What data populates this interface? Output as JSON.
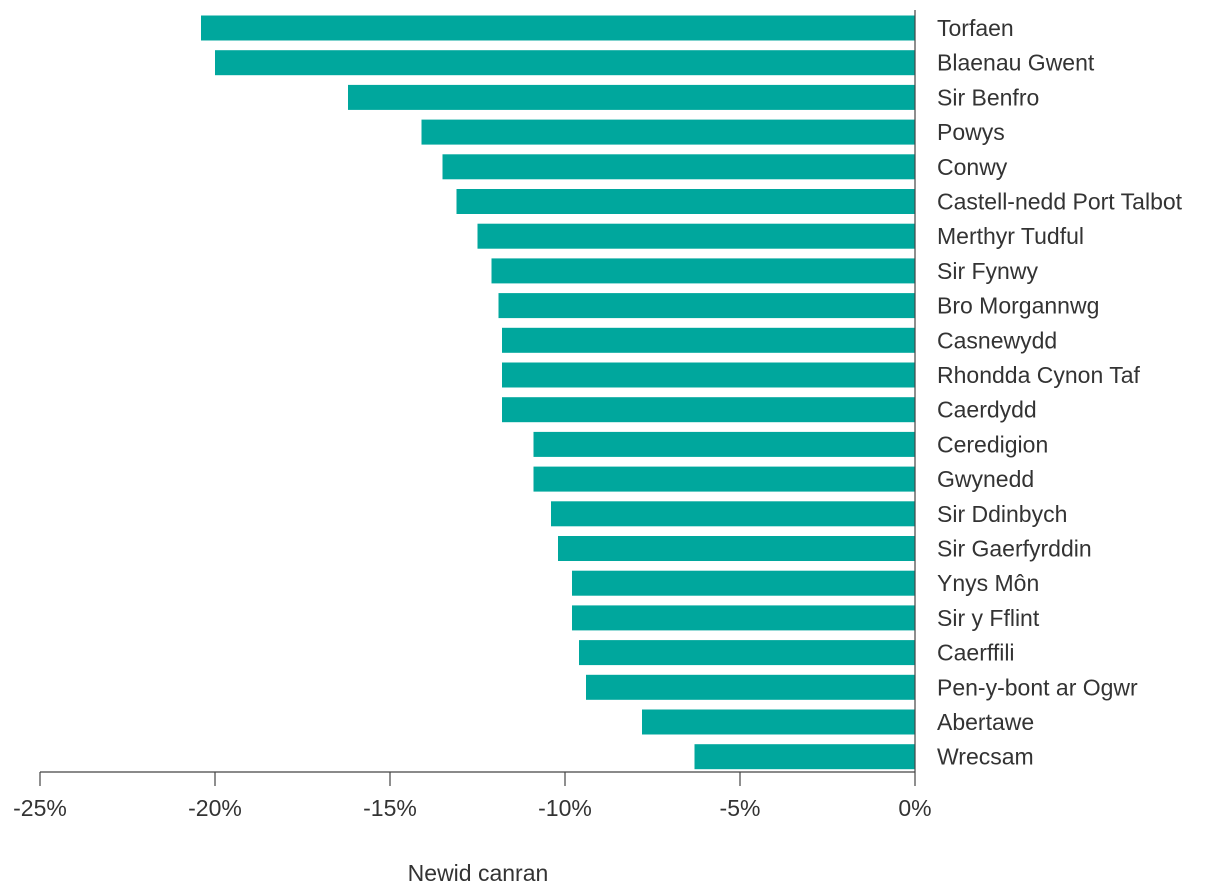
{
  "chart_data": {
    "type": "bar",
    "orientation": "horizontal",
    "categories": [
      "Torfaen",
      "Blaenau Gwent",
      "Sir Benfro",
      "Powys",
      "Conwy",
      "Castell-nedd Port Talbot",
      "Merthyr Tudful",
      "Sir Fynwy",
      "Bro Morgannwg",
      "Casnewydd",
      "Rhondda Cynon Taf",
      "Caerdydd",
      "Ceredigion",
      "Gwynedd",
      "Sir Ddinbych",
      "Sir Gaerfyrddin",
      "Ynys Môn",
      "Sir y Fflint",
      "Caerffili",
      "Pen-y-bont ar Ogwr",
      "Abertawe",
      "Wrecsam"
    ],
    "values": [
      -20.4,
      -20.0,
      -16.2,
      -14.1,
      -13.5,
      -13.1,
      -12.5,
      -12.1,
      -11.9,
      -11.8,
      -11.8,
      -11.8,
      -10.9,
      -10.9,
      -10.4,
      -10.2,
      -9.8,
      -9.8,
      -9.6,
      -9.4,
      -7.8,
      -6.3
    ],
    "xlim": [
      -25,
      0
    ],
    "xticks": [
      -25,
      -20,
      -15,
      -10,
      -5,
      0
    ],
    "xtick_labels": [
      "-25%",
      "-20%",
      "-15%",
      "-10%",
      "-5%",
      "0%"
    ],
    "xlabel": "Newid canran",
    "ylabel": "",
    "title": "",
    "grid": false,
    "colors": {
      "bar": "#00A79D",
      "axis": "#444444",
      "text": "#333333"
    }
  }
}
